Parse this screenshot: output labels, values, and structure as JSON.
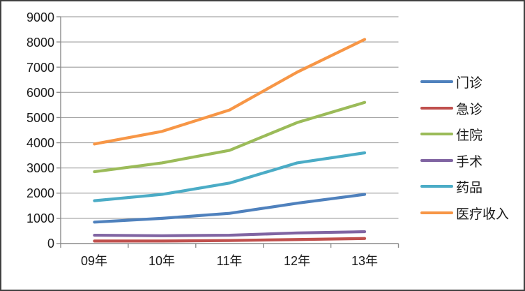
{
  "chart_data": {
    "type": "line",
    "title": "",
    "xlabel": "",
    "ylabel": "",
    "categories": [
      "09年",
      "10年",
      "11年",
      "12年",
      "13年"
    ],
    "series": [
      {
        "name": "门诊",
        "color": "#4F81BD",
        "values": [
          850,
          1000,
          1200,
          1600,
          1950
        ]
      },
      {
        "name": "急诊",
        "color": "#C0504D",
        "values": [
          100,
          100,
          120,
          160,
          200
        ]
      },
      {
        "name": "住院",
        "color": "#9BBB59",
        "values": [
          2850,
          3200,
          3700,
          4800,
          5600
        ]
      },
      {
        "name": "手术",
        "color": "#8064A2",
        "values": [
          330,
          310,
          330,
          420,
          470
        ]
      },
      {
        "name": "药品",
        "color": "#4BACC6",
        "values": [
          1700,
          1950,
          2400,
          3200,
          3600
        ]
      },
      {
        "name": "医疗收入",
        "color": "#F79646",
        "values": [
          3950,
          4450,
          5300,
          6800,
          8100
        ]
      }
    ],
    "ylim": [
      0,
      9000
    ],
    "ytick_step": 1000,
    "ytick_labels": [
      "9000",
      "8000",
      "7000",
      "6000",
      "5000",
      "4000",
      "3000",
      "2000",
      "1000",
      "0"
    ],
    "grid": true,
    "legend_position": "right"
  },
  "colors": {
    "gridline": "#A6A6A6",
    "axis": "#8C8C8C",
    "text": "#1A1A1A",
    "background": "#FFFFFF",
    "border": "#404040"
  }
}
